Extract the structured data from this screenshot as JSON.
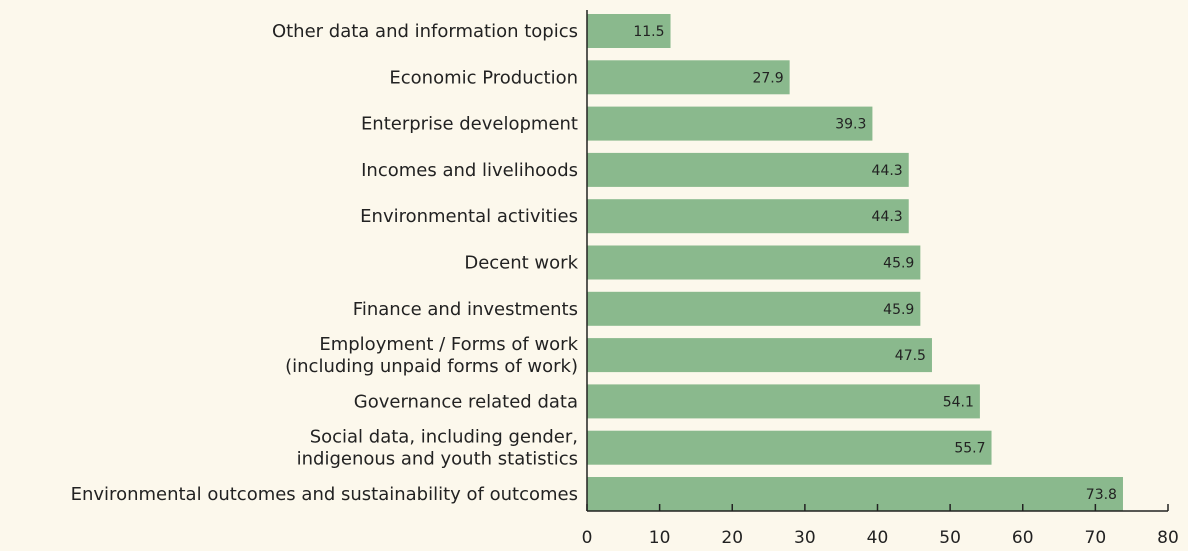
{
  "chart_data": {
    "type": "bar",
    "orientation": "horizontal",
    "categories": [
      "Other data and information topics",
      "Economic Production",
      "Enterprise development",
      "Incomes and livelihoods",
      "Environmental activities",
      "Decent work",
      "Finance and investments",
      "Employment / Forms of work\n(including unpaid forms of work)",
      "Governance related data",
      "Social data, including gender,\nindigenous and youth statistics",
      "Environmental outcomes and sustainability of outcomes"
    ],
    "values": [
      11.5,
      27.9,
      39.3,
      44.3,
      44.3,
      45.9,
      45.9,
      47.5,
      54.1,
      55.7,
      73.8
    ],
    "color": "#8ab98d",
    "xlim": [
      0,
      80
    ],
    "xticks": [
      0,
      10,
      20,
      30,
      40,
      50,
      60,
      70,
      80
    ]
  }
}
